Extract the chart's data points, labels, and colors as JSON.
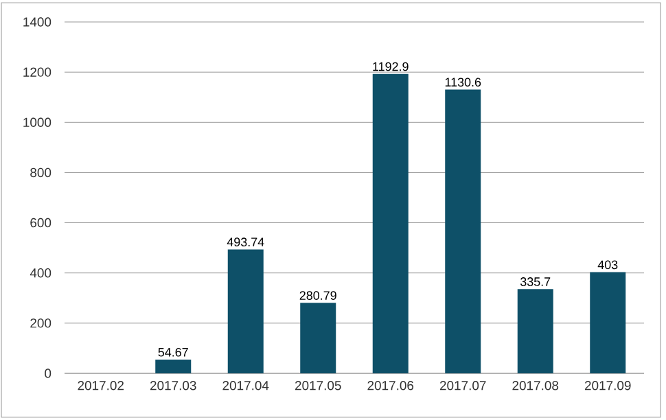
{
  "chart_data": {
    "type": "bar",
    "categories": [
      "2017.02",
      "2017.03",
      "2017.04",
      "2017.05",
      "2017.06",
      "2017.07",
      "2017.08",
      "2017.09"
    ],
    "values": [
      null,
      54.67,
      493.74,
      280.79,
      1192.9,
      1130.6,
      335.7,
      403
    ],
    "color": "#0e5068",
    "ylim": [
      0,
      1400
    ],
    "yticks": [
      0,
      200,
      400,
      600,
      800,
      1000,
      1200,
      1400
    ],
    "grid": "y",
    "data_labels": true
  }
}
